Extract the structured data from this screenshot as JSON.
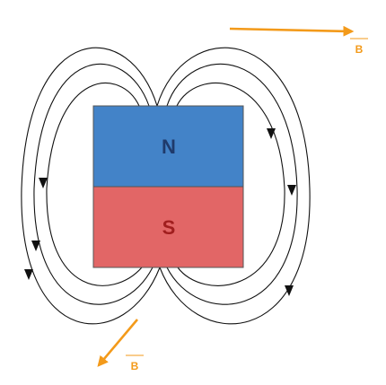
{
  "magnet": {
    "north": {
      "label": "N",
      "fill": "#4383c8",
      "text_color": "#1f3a6b"
    },
    "south": {
      "label": "S",
      "fill": "#e26666",
      "text_color": "#a01e1e"
    },
    "outline": "#555555"
  },
  "field_lines": {
    "color": "#111111",
    "loops_per_side": 3
  },
  "vectors": [
    {
      "label": "B",
      "color": "#f39a1a",
      "position": "top-right"
    },
    {
      "label": "B",
      "color": "#f39a1a",
      "position": "bottom-left"
    }
  ]
}
